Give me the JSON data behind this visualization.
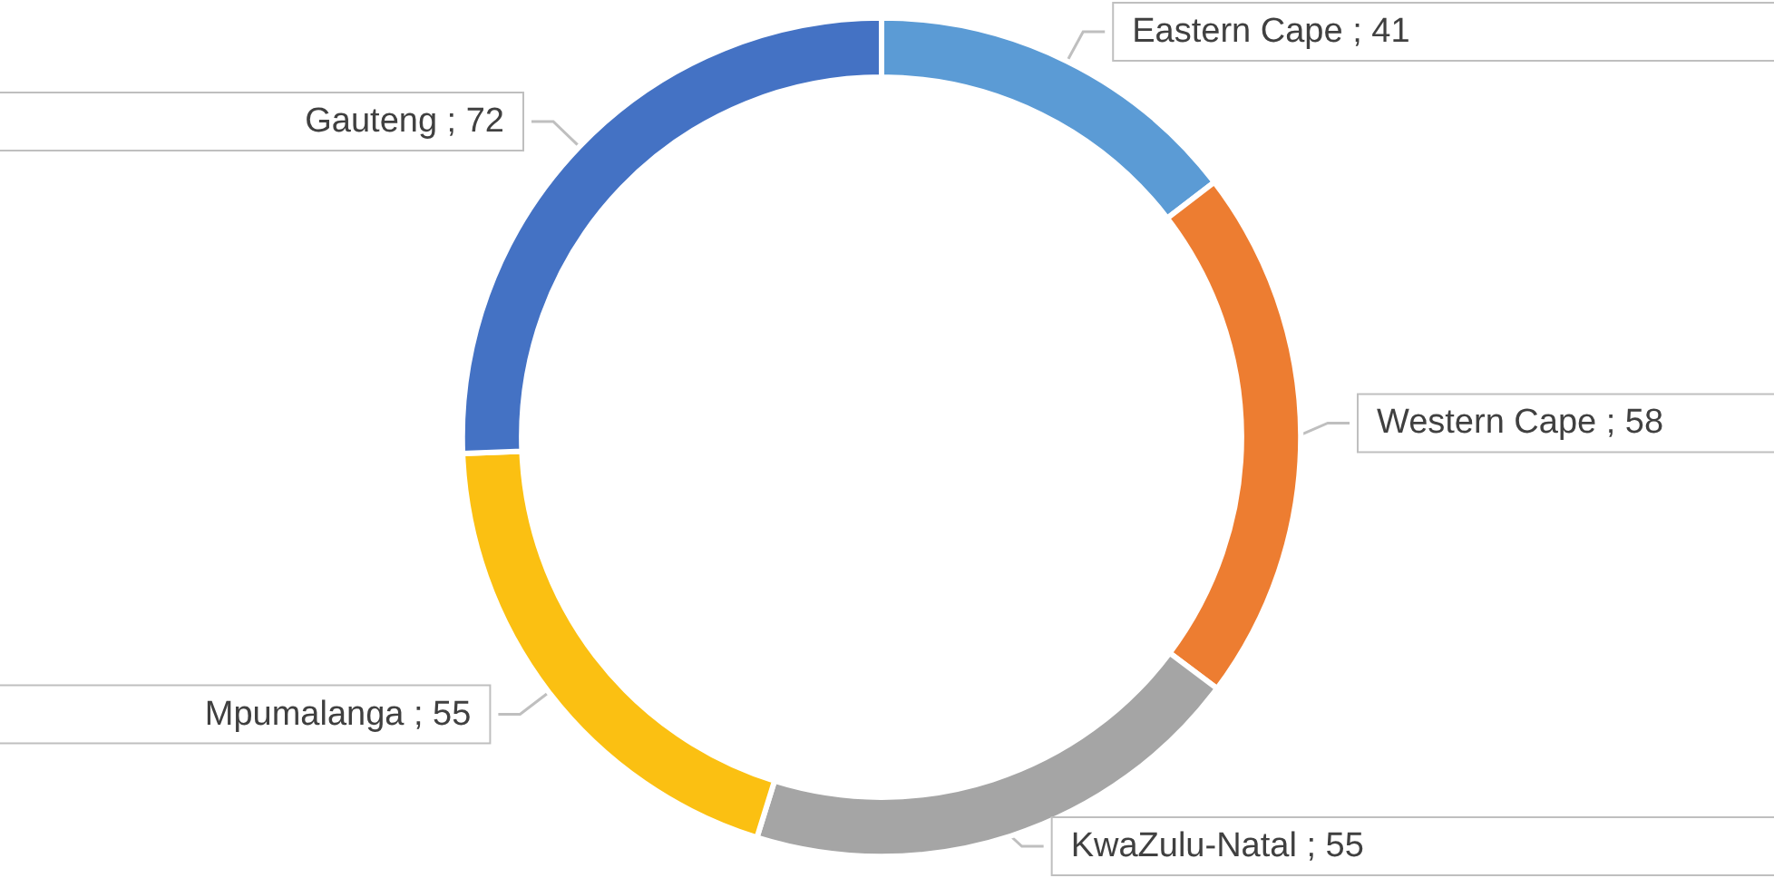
{
  "chart_data": {
    "type": "donut",
    "categories": [
      "Eastern Cape",
      "Western Cape",
      "KwaZulu-Natal",
      "Mpumalanga",
      "Gauteng"
    ],
    "values": [
      41,
      58,
      55,
      55,
      72
    ],
    "value_labels": [
      "; 41",
      "; 58",
      "; 55",
      "; 55",
      "; 72"
    ],
    "colors": [
      "#5b9bd5",
      "#ed7d31",
      "#a5a5a5",
      "#fbc012",
      "#4472c4"
    ],
    "legend": false
  }
}
